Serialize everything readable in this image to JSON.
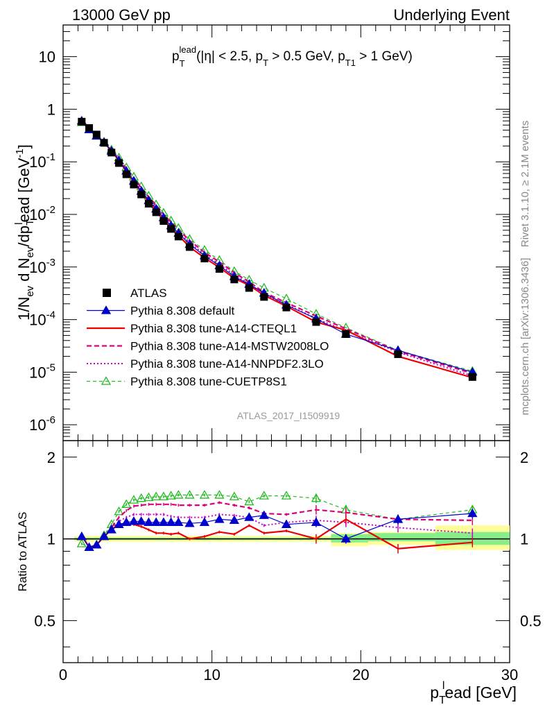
{
  "header": {
    "left": "13000 GeV pp",
    "right": "Underlying Event"
  },
  "side_labels": {
    "rivet": "Rivet 3.1.10, ≥ 2.1M events",
    "mcplots": "mcplots.cern.ch [arXiv:1306.3436]"
  },
  "watermark": "ATLAS_2017_I1509919",
  "chart_data": [
    {
      "type": "scatter",
      "y_scale": "log",
      "xlim": [
        0,
        30
      ],
      "ylim": [
        5e-07,
        40
      ],
      "cut_label": {
        "p": "p",
        "sub": "T",
        "sup": "lead",
        "rest": "(|η| < 2.5, p",
        "sub2": "T",
        "rest2": " > 0.5 GeV, p",
        "sub3": "T1",
        "rest3": " > 1 GeV)"
      },
      "ylabel": "1/N_ev d N_ev/dp_T^l ead [GeV^-1]",
      "ylabel_parts": {
        "a": "1/N",
        "a_sub": "ev",
        "b": " d N",
        "b_sub": "ev",
        "c": "/dp",
        "c_sub": "T",
        "c_sup": "l",
        "d": "ead [GeV",
        "d_sup": "-1",
        "e": "]"
      },
      "y_ticks": [
        {
          "v": 1e-06,
          "base": "10",
          "exp": "-6"
        },
        {
          "v": 1e-05,
          "base": "10",
          "exp": "-5"
        },
        {
          "v": 0.0001,
          "base": "10",
          "exp": "-4"
        },
        {
          "v": 0.001,
          "base": "10",
          "exp": "-3"
        },
        {
          "v": 0.01,
          "base": "10",
          "exp": "-2"
        },
        {
          "v": 0.1,
          "base": "10",
          "exp": "-1"
        },
        {
          "v": 1,
          "base": "1",
          "exp": ""
        },
        {
          "v": 10,
          "base": "10",
          "exp": ""
        }
      ],
      "x": [
        1.25,
        1.75,
        2.25,
        2.75,
        3.25,
        3.75,
        4.25,
        4.75,
        5.25,
        5.75,
        6.25,
        6.75,
        7.25,
        7.75,
        8.5,
        9.5,
        10.5,
        11.5,
        12.5,
        13.5,
        15,
        17,
        19,
        22.5,
        27.5
      ],
      "series": [
        {
          "name": "ATLAS",
          "color": "#000000",
          "style": "data",
          "values": [
            0.58,
            0.44,
            0.33,
            0.23,
            0.15,
            0.095,
            0.058,
            0.037,
            0.024,
            0.016,
            0.011,
            0.0075,
            0.0053,
            0.0038,
            0.0024,
            0.00145,
            0.00092,
            0.00058,
            0.0004,
            0.00027,
            0.00017,
            9e-05,
            5.3e-05,
            2.2e-05,
            8.1e-06
          ]
        },
        {
          "name": "Pythia 8.308 default",
          "color": "#0000cc",
          "style": "solid-tri",
          "values": [
            0.6,
            0.41,
            0.31,
            0.235,
            0.16,
            0.107,
            0.067,
            0.043,
            0.0277,
            0.0184,
            0.0127,
            0.0087,
            0.0061,
            0.0044,
            0.0027,
            0.00164,
            0.00106,
            0.00066,
            0.00047,
            0.00032,
            0.00019,
            0.000104,
            5.3e-05,
            2.6e-05,
            1e-05
          ]
        },
        {
          "name": "Pythia 8.308 tune-A14-CTEQL1",
          "color": "#ee0000",
          "style": "solid",
          "values": [
            0.6,
            0.41,
            0.31,
            0.235,
            0.16,
            0.107,
            0.066,
            0.042,
            0.0268,
            0.0172,
            0.0115,
            0.0079,
            0.0055,
            0.004,
            0.0024,
            0.0015,
            0.00098,
            0.00061,
            0.00045,
            0.00029,
            0.00018,
            9e-05,
            6.3e-05,
            2e-05,
            7.9e-06
          ]
        },
        {
          "name": "Pythia 8.308 tune-A14-MSTW2008LO",
          "color": "#dd0077",
          "style": "dash",
          "values": [
            0.6,
            0.41,
            0.31,
            0.235,
            0.165,
            0.114,
            0.074,
            0.049,
            0.032,
            0.0216,
            0.0148,
            0.0101,
            0.0071,
            0.0051,
            0.0032,
            0.0019,
            0.00125,
            0.00078,
            0.00052,
            0.00033,
            0.00021,
            0.000117,
            6.7e-05,
            2.5e-05,
            9.5e-06
          ]
        },
        {
          "name": "Pythia 8.308 tune-A14-NNPDF2.3LO",
          "color": "#cc00cc",
          "style": "dot",
          "values": [
            0.6,
            0.41,
            0.31,
            0.235,
            0.163,
            0.11,
            0.07,
            0.046,
            0.0295,
            0.0197,
            0.0135,
            0.0093,
            0.0064,
            0.0046,
            0.0029,
            0.00174,
            0.00113,
            0.00071,
            0.00048,
            0.0003,
            0.000195,
            0.000105,
            6.1e-05,
            2.4e-05,
            8.5e-06
          ]
        },
        {
          "name": "Pythia 8.308 tune-CUETP8S1",
          "color": "#22bb22",
          "style": "dash-opentri",
          "values": [
            0.56,
            0.41,
            0.31,
            0.24,
            0.17,
            0.12,
            0.078,
            0.052,
            0.034,
            0.0224,
            0.0154,
            0.0107,
            0.0076,
            0.0055,
            0.0034,
            0.0021,
            0.00135,
            0.00083,
            0.00057,
            0.0004,
            0.00025,
            0.000128,
            7e-05,
            2.6e-05,
            1.05e-05
          ]
        }
      ]
    },
    {
      "type": "line",
      "xlim": [
        0,
        30
      ],
      "ylim": [
        0.35,
        2.3
      ],
      "ylabel": "Ratio to ATLAS",
      "xlabel_parts": {
        "a": "p",
        "a_sub": "T",
        "a_sup": "l",
        "b": "ead [GeV]"
      },
      "x_ticks": [
        0,
        10,
        20,
        30
      ],
      "y_ticks": [
        0.5,
        1,
        2
      ],
      "x": [
        1.25,
        1.75,
        2.25,
        2.75,
        3.25,
        3.75,
        4.25,
        4.75,
        5.25,
        5.75,
        6.25,
        6.75,
        7.25,
        7.75,
        8.5,
        9.5,
        10.5,
        11.5,
        12.5,
        13.5,
        15,
        17,
        19,
        22.5,
        27.5
      ],
      "bands": [
        {
          "x0": 0.75,
          "x1": 18,
          "stat": [
            0.99,
            1.01
          ],
          "tot": [
            0.975,
            1.025
          ]
        },
        {
          "x0": 18,
          "x1": 20.5,
          "stat": [
            0.97,
            1.04
          ],
          "tot": [
            0.94,
            1.05
          ]
        },
        {
          "x0": 20.5,
          "x1": 25,
          "stat": [
            0.98,
            1.05
          ],
          "tot": [
            0.95,
            1.06
          ]
        },
        {
          "x0": 25,
          "x1": 30,
          "stat": [
            0.95,
            1.06
          ],
          "tot": [
            0.91,
            1.12
          ]
        }
      ],
      "series": [
        {
          "name": "Pythia 8.308 default",
          "color": "#0000cc",
          "style": "solid-tri",
          "values": [
            1.02,
            0.93,
            0.95,
            1.02,
            1.08,
            1.13,
            1.15,
            1.16,
            1.16,
            1.15,
            1.15,
            1.15,
            1.15,
            1.15,
            1.14,
            1.15,
            1.18,
            1.17,
            1.2,
            1.22,
            1.13,
            1.15,
            1.0,
            1.18,
            1.24
          ]
        },
        {
          "name": "Pythia 8.308 tune-A14-CTEQL1",
          "color": "#ee0000",
          "style": "solid",
          "values": [
            1.03,
            0.93,
            0.95,
            1.02,
            1.08,
            1.13,
            1.14,
            1.13,
            1.11,
            1.08,
            1.05,
            1.05,
            1.04,
            1.05,
            1.0,
            1.02,
            1.06,
            1.04,
            1.12,
            1.05,
            1.07,
            1.0,
            1.18,
            0.92,
            0.97
          ]
        },
        {
          "name": "Pythia 8.308 tune-A14-MSTW2008LO",
          "color": "#dd0077",
          "style": "dash",
          "values": [
            1.03,
            0.93,
            0.95,
            1.02,
            1.1,
            1.2,
            1.27,
            1.32,
            1.33,
            1.34,
            1.34,
            1.34,
            1.34,
            1.33,
            1.33,
            1.33,
            1.36,
            1.33,
            1.3,
            1.24,
            1.23,
            1.28,
            1.25,
            1.18,
            1.17
          ]
        },
        {
          "name": "Pythia 8.308 tune-A14-NNPDF2.3LO",
          "color": "#cc00cc",
          "style": "dot",
          "values": [
            1.03,
            0.93,
            0.95,
            1.02,
            1.09,
            1.16,
            1.2,
            1.23,
            1.23,
            1.23,
            1.23,
            1.23,
            1.21,
            1.2,
            1.2,
            1.2,
            1.23,
            1.22,
            1.2,
            1.12,
            1.15,
            1.17,
            1.15,
            1.1,
            1.05
          ]
        },
        {
          "name": "Pythia 8.308 tune-CUETP8S1",
          "color": "#22bb22",
          "style": "dash-opentri",
          "values": [
            0.96,
            0.93,
            0.95,
            1.03,
            1.13,
            1.26,
            1.34,
            1.39,
            1.41,
            1.42,
            1.43,
            1.43,
            1.44,
            1.45,
            1.45,
            1.45,
            1.45,
            1.43,
            1.37,
            1.44,
            1.44,
            1.41,
            1.28,
            1.18,
            1.28
          ]
        }
      ]
    }
  ]
}
